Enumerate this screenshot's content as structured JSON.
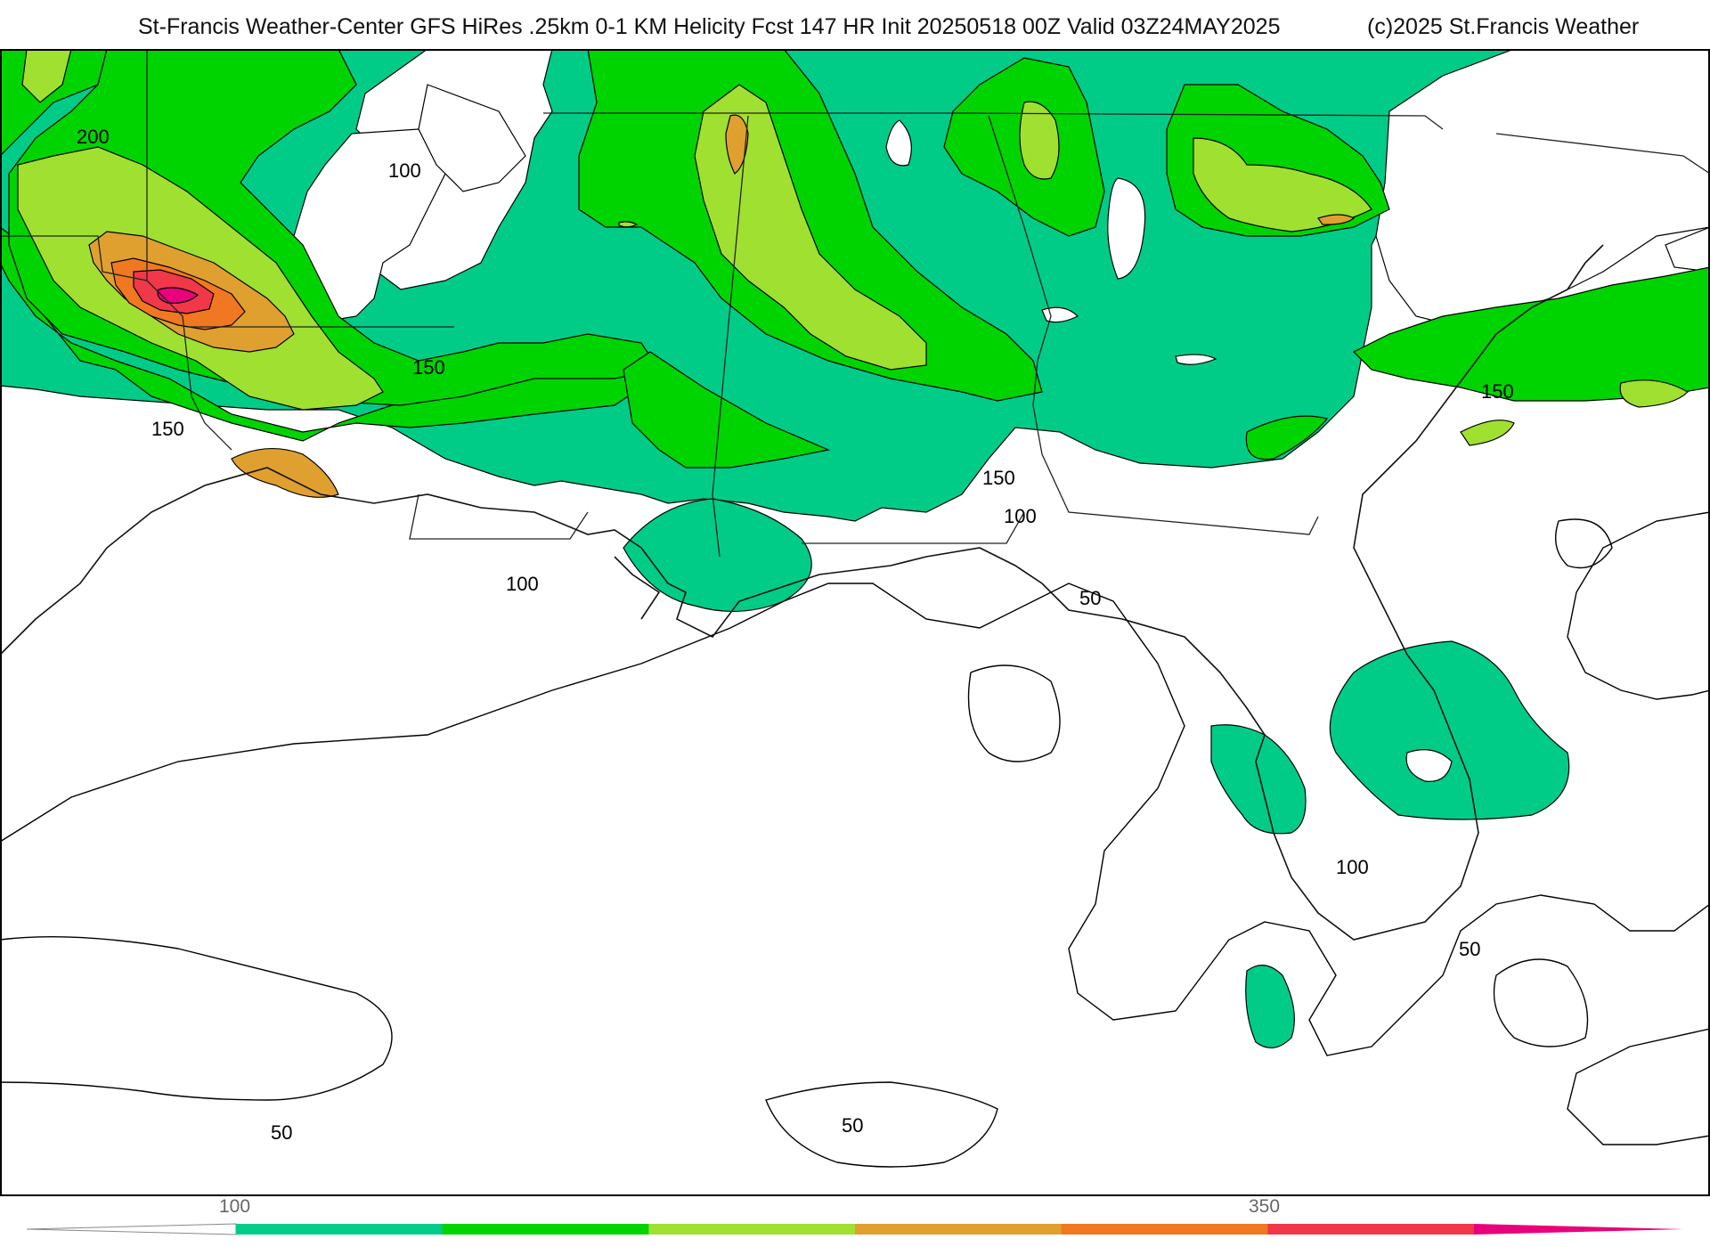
{
  "header": {
    "title": "St-Francis Weather-Center GFS HiRes .25km 0-1 KM Helicity Fcst 147 HR Init 20250518 00Z  Valid 03Z24MAY2025",
    "copyright": "(c)2025 St.Francis Weather"
  },
  "contour_labels": {
    "l200": "200",
    "l150_a": "150",
    "l150_b": "150",
    "l150_c": "150",
    "l150_d": "150",
    "l100_a": "100",
    "l100_b": "100",
    "l100_c": "100",
    "l100_d": "100",
    "l50_a": "50",
    "l50_b": "50",
    "l50_c": "50",
    "l50_d": "50"
  },
  "colorbar": {
    "tick_low": "100",
    "tick_high": "350",
    "colors": [
      "#00cc88",
      "#00d400",
      "#a0e030",
      "#e0a030",
      "#f07820",
      "#f03848",
      "#e8007c"
    ]
  }
}
